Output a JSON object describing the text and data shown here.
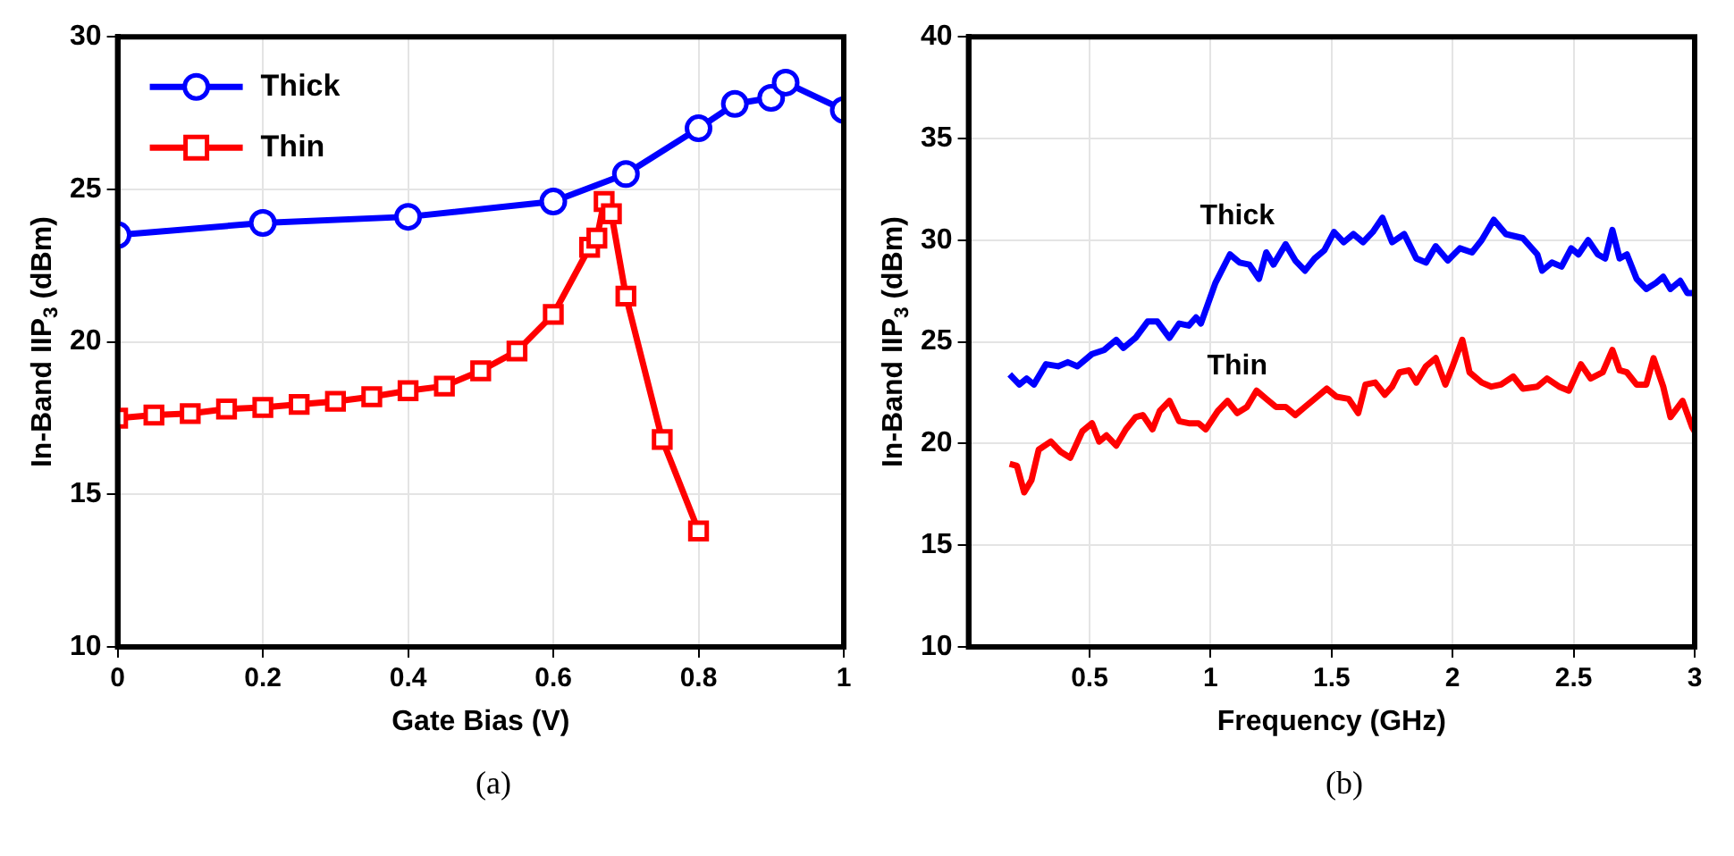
{
  "chart_data": [
    {
      "type": "line",
      "xlabel": "Gate Bias (V)",
      "ylabel": "In-Band IIP$_{3}$ (dBm)",
      "xlim": [
        0,
        1
      ],
      "xticks": [
        0,
        0.2,
        0.4,
        0.6,
        0.8,
        1
      ],
      "ylim": [
        10,
        30
      ],
      "yticks": [
        10,
        15,
        20,
        25,
        30
      ],
      "grid": true,
      "legend": "top left",
      "line_style": "solid",
      "annotations": [
        "(a)"
      ],
      "series": [
        {
          "name": "Thick",
          "color": "#0000ff",
          "marker": "circle",
          "x": [
            0,
            0.2,
            0.4,
            0.6,
            0.7,
            0.8,
            0.85,
            0.9,
            0.92,
            1
          ],
          "values": [
            23.5,
            23.9,
            24.1,
            24.6,
            25.5,
            27,
            27.8,
            28,
            28.5,
            27.6
          ]
        },
        {
          "name": "Thin",
          "color": "#ff0000",
          "marker": "square",
          "x": [
            0,
            0.05,
            0.1,
            0.15,
            0.2,
            0.25,
            0.3,
            0.35,
            0.4,
            0.45,
            0.5,
            0.55,
            0.6,
            0.65,
            0.66,
            0.67,
            0.68,
            0.7,
            0.75,
            0.8
          ],
          "values": [
            17.5,
            17.6,
            17.65,
            17.8,
            17.85,
            17.95,
            18.05,
            18.2,
            18.4,
            18.55,
            19.05,
            19.7,
            20.9,
            23.1,
            23.4,
            24.6,
            24.2,
            21.5,
            16.8,
            13.8
          ]
        }
      ]
    },
    {
      "type": "line",
      "xlabel": "Frequency (GHz)",
      "ylabel": "In-Band IIP$_{3}$ (dBm)",
      "xlim": [
        0,
        3
      ],
      "xticks": [
        0.5,
        1,
        1.5,
        2,
        2.5,
        3
      ],
      "ylim": [
        10,
        40
      ],
      "yticks": [
        10,
        15,
        20,
        25,
        30,
        35,
        40
      ],
      "grid": true,
      "legend": false,
      "marker": "none",
      "line_style": "solid",
      "annotations": [
        "(b)"
      ],
      "series": [
        {
          "name": "Thick",
          "color": "#0000ff",
          "x": [
            0.17,
            0.21,
            0.24,
            0.27,
            0.32,
            0.37,
            0.41,
            0.45,
            0.51,
            0.56,
            0.61,
            0.64,
            0.69,
            0.74,
            0.78,
            0.83,
            0.87,
            0.91,
            0.94,
            0.96,
            1.02,
            1.08,
            1.12,
            1.16,
            1.2,
            1.23,
            1.26,
            1.31,
            1.35,
            1.39,
            1.43,
            1.47,
            1.51,
            1.55,
            1.59,
            1.63,
            1.67,
            1.71,
            1.75,
            1.8,
            1.85,
            1.89,
            1.93,
            1.98,
            2.03,
            2.08,
            2.12,
            2.17,
            2.22,
            2.29,
            2.35,
            2.37,
            2.41,
            2.45,
            2.49,
            2.52,
            2.56,
            2.6,
            2.63,
            2.66,
            2.69,
            2.72,
            2.76,
            2.8,
            2.84,
            2.87,
            2.9,
            2.94,
            2.97,
            3.0
          ],
          "values": [
            23.4,
            22.9,
            23.2,
            22.9,
            23.9,
            23.8,
            24,
            23.8,
            24.4,
            24.6,
            25.1,
            24.7,
            25.2,
            26,
            26,
            25.2,
            25.9,
            25.8,
            26.2,
            25.9,
            27.9,
            29.3,
            28.9,
            28.8,
            28.1,
            29.4,
            28.8,
            29.8,
            29,
            28.5,
            29.1,
            29.5,
            30.4,
            29.9,
            30.3,
            29.9,
            30.4,
            31.1,
            29.9,
            30.3,
            29.1,
            28.9,
            29.7,
            29,
            29.6,
            29.4,
            30,
            31,
            30.3,
            30.1,
            29.3,
            28.5,
            28.9,
            28.7,
            29.6,
            29.3,
            30,
            29.3,
            29.1,
            30.5,
            29.1,
            29.3,
            28.1,
            27.6,
            27.9,
            28.2,
            27.6,
            28,
            27.4,
            27.4
          ]
        },
        {
          "name": "Thin",
          "color": "#ff0000",
          "x": [
            0.17,
            0.2,
            0.23,
            0.26,
            0.29,
            0.34,
            0.38,
            0.42,
            0.47,
            0.51,
            0.54,
            0.57,
            0.61,
            0.65,
            0.69,
            0.72,
            0.76,
            0.79,
            0.83,
            0.87,
            0.91,
            0.95,
            0.98,
            1.03,
            1.07,
            1.11,
            1.15,
            1.19,
            1.23,
            1.27,
            1.31,
            1.35,
            1.39,
            1.43,
            1.48,
            1.52,
            1.57,
            1.61,
            1.64,
            1.68,
            1.72,
            1.75,
            1.78,
            1.82,
            1.85,
            1.89,
            1.93,
            1.97,
            2,
            2.04,
            2.07,
            2.12,
            2.16,
            2.2,
            2.25,
            2.29,
            2.35,
            2.39,
            2.44,
            2.48,
            2.53,
            2.57,
            2.62,
            2.66,
            2.69,
            2.72,
            2.76,
            2.8,
            2.83,
            2.87,
            2.9,
            2.95,
            2.99,
            3.0
          ],
          "values": [
            19,
            18.9,
            17.6,
            18.2,
            19.7,
            20.1,
            19.6,
            19.3,
            20.6,
            21,
            20.1,
            20.4,
            19.9,
            20.7,
            21.3,
            21.4,
            20.7,
            21.6,
            22.1,
            21.1,
            21,
            21,
            20.7,
            21.6,
            22.1,
            21.5,
            21.8,
            22.6,
            22.2,
            21.8,
            21.8,
            21.4,
            21.8,
            22.2,
            22.7,
            22.3,
            22.2,
            21.5,
            22.9,
            23,
            22.4,
            22.8,
            23.5,
            23.6,
            23,
            23.8,
            24.2,
            22.9,
            23.8,
            25.1,
            23.5,
            23,
            22.8,
            22.9,
            23.3,
            22.7,
            22.8,
            23.2,
            22.8,
            22.6,
            23.9,
            23.2,
            23.5,
            24.6,
            23.6,
            23.5,
            22.9,
            22.9,
            24.2,
            22.8,
            21.3,
            22.1,
            20.8,
            20.6
          ]
        }
      ]
    }
  ]
}
